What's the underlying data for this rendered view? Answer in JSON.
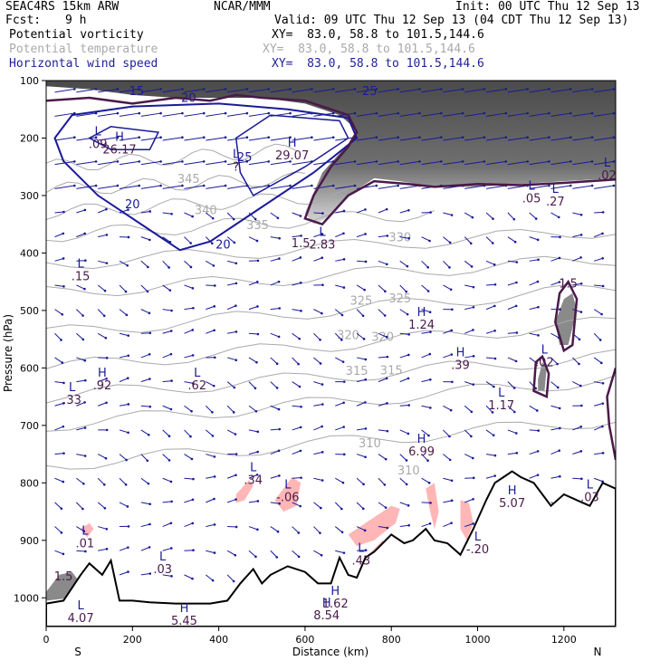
{
  "header": {
    "model": "SEAC4RS 15km ARW",
    "org": "NCAR/MMM",
    "init": "Init: 00 UTC Thu 12 Sep 13",
    "fcst_label": "Fcst:",
    "fcst_value": "9 h",
    "valid": "Valid: 09 UTC Thu 12 Sep 13 (04 CDT Thu 12 Sep 13)",
    "fields": [
      {
        "name": "Potential vorticity",
        "xy": "XY=  83.0, 58.8 to 101.5,144.6",
        "color": "#000000"
      },
      {
        "name": "Potential temperature",
        "xy": "XY=  83.0, 58.8 to 101.5,144.6",
        "color": "#aaaaaa"
      },
      {
        "name": "Horizontal wind speed",
        "xy": "XY=  83.0, 58.8 to 101.5,144.6",
        "color": "#1f1f99"
      }
    ]
  },
  "chart_data": {
    "type": "cross-section",
    "xlabel": "Distance (km)",
    "ylabel": "Pressure (hPa)",
    "xlim": [
      0,
      1320
    ],
    "ylim": [
      1050,
      100
    ],
    "x_ticks": [
      0,
      200,
      400,
      600,
      800,
      1000,
      1200
    ],
    "y_ticks": [
      100,
      200,
      300,
      400,
      500,
      600,
      700,
      800,
      900,
      1000
    ],
    "x_end_labels": {
      "left": "S",
      "right": "N"
    },
    "colors": {
      "pv_contour": "#4a1a4a",
      "theta_contour": "#aaaaaa",
      "wind_contour": "#1a1a99",
      "wind_vector": "#1a1a99",
      "moist_shading": "#ffb6b6",
      "pv_shading": "#666666"
    },
    "terrain": [
      [
        0,
        1010
      ],
      [
        40,
        1005
      ],
      [
        80,
        960
      ],
      [
        100,
        940
      ],
      [
        130,
        960
      ],
      [
        150,
        935
      ],
      [
        170,
        1005
      ],
      [
        200,
        1005
      ],
      [
        240,
        1008
      ],
      [
        300,
        1010
      ],
      [
        380,
        1010
      ],
      [
        420,
        1005
      ],
      [
        450,
        975
      ],
      [
        480,
        950
      ],
      [
        500,
        975
      ],
      [
        520,
        960
      ],
      [
        560,
        945
      ],
      [
        600,
        955
      ],
      [
        630,
        975
      ],
      [
        660,
        975
      ],
      [
        680,
        930
      ],
      [
        700,
        960
      ],
      [
        720,
        965
      ],
      [
        740,
        930
      ],
      [
        760,
        920
      ],
      [
        780,
        905
      ],
      [
        800,
        890
      ],
      [
        830,
        905
      ],
      [
        850,
        900
      ],
      [
        880,
        880
      ],
      [
        900,
        900
      ],
      [
        930,
        905
      ],
      [
        960,
        925
      ],
      [
        990,
        880
      ],
      [
        1020,
        830
      ],
      [
        1040,
        800
      ],
      [
        1060,
        790
      ],
      [
        1080,
        780
      ],
      [
        1100,
        790
      ],
      [
        1130,
        800
      ],
      [
        1150,
        820
      ],
      [
        1170,
        840
      ],
      [
        1200,
        820
      ],
      [
        1230,
        830
      ],
      [
        1260,
        840
      ],
      [
        1290,
        800
      ],
      [
        1320,
        810
      ]
    ],
    "theta_contours": [
      {
        "value": 310,
        "label_x": 840,
        "label_p": 785
      },
      {
        "value": 310,
        "label_x": 750,
        "label_p": 738
      },
      {
        "value": 315,
        "label_x": 720,
        "label_p": 612
      },
      {
        "value": 315,
        "label_x": 800,
        "label_p": 611
      },
      {
        "value": 320,
        "label_x": 700,
        "label_p": 550
      },
      {
        "value": 320,
        "label_x": 780,
        "label_p": 553
      },
      {
        "value": 325,
        "label_x": 730,
        "label_p": 490
      },
      {
        "value": 325,
        "label_x": 820,
        "label_p": 486
      },
      {
        "value": 330,
        "label_x": 820,
        "label_p": 380
      },
      {
        "value": 335,
        "label_x": 490,
        "label_p": 358
      },
      {
        "value": 340,
        "label_x": 370,
        "label_p": 332
      },
      {
        "value": 345,
        "label_x": 330,
        "label_p": 278
      }
    ],
    "wind_contours": [
      {
        "value": 15,
        "label_x": 210,
        "label_p": 125
      },
      {
        "value": 20,
        "label_x": 330,
        "label_p": 137
      },
      {
        "value": 20,
        "label_x": 200,
        "label_p": 322
      },
      {
        "value": 20,
        "label_x": 410,
        "label_p": 392
      },
      {
        "value": 25,
        "label_x": 460,
        "label_p": 240
      },
      {
        "value": 25,
        "label_x": 750,
        "label_p": 125
      }
    ],
    "pv_labels": [
      {
        "value": 1.5,
        "label_x": 590,
        "label_p": 390
      },
      {
        "value": 1.5,
        "label_x": 1210,
        "label_p": 460
      },
      {
        "value": 1.5,
        "label_x": 40,
        "label_p": 970
      }
    ],
    "max_min_markers": [
      {
        "mark": "L",
        "x": 120,
        "p": 195,
        "value": ".09"
      },
      {
        "mark": "H",
        "x": 170,
        "p": 205,
        "value": "26.17"
      },
      {
        "mark": "H",
        "x": 570,
        "p": 215,
        "value": "29.07"
      },
      {
        "mark": "L",
        "x": 440,
        "p": 235,
        "value": "?"
      },
      {
        "mark": "L",
        "x": 1125,
        "p": 290,
        "value": ".05"
      },
      {
        "mark": "L",
        "x": 1180,
        "p": 295,
        "value": ".27"
      },
      {
        "mark": "L",
        "x": 1300,
        "p": 250,
        "value": ".02"
      },
      {
        "mark": "L",
        "x": 640,
        "p": 370,
        "value": "2.83"
      },
      {
        "mark": "L",
        "x": 80,
        "p": 425,
        "value": ".15"
      },
      {
        "mark": "H",
        "x": 870,
        "p": 510,
        "value": "1.24"
      },
      {
        "mark": "H",
        "x": 960,
        "p": 580,
        "value": ".39"
      },
      {
        "mark": "L",
        "x": 1155,
        "p": 575,
        "value": ".02"
      },
      {
        "mark": "H",
        "x": 130,
        "p": 615,
        "value": ".92"
      },
      {
        "mark": "L",
        "x": 350,
        "p": 615,
        "value": ".62"
      },
      {
        "mark": "L",
        "x": 60,
        "p": 640,
        "value": ".33"
      },
      {
        "mark": "L",
        "x": 1055,
        "p": 650,
        "value": "1.17"
      },
      {
        "mark": "H",
        "x": 870,
        "p": 730,
        "value": "6.99"
      },
      {
        "mark": "L",
        "x": 480,
        "p": 780,
        "value": ".34"
      },
      {
        "mark": "L",
        "x": 560,
        "p": 810,
        "value": "-.06"
      },
      {
        "mark": "H",
        "x": 1080,
        "p": 820,
        "value": "5.07"
      },
      {
        "mark": "L",
        "x": 1260,
        "p": 810,
        "value": ".03"
      },
      {
        "mark": "L",
        "x": 90,
        "p": 890,
        "value": ".01"
      },
      {
        "mark": "L",
        "x": 730,
        "p": 920,
        "value": ".43"
      },
      {
        "mark": "L",
        "x": 1000,
        "p": 900,
        "value": "-.20"
      },
      {
        "mark": "L",
        "x": 270,
        "p": 935,
        "value": ".03"
      },
      {
        "mark": "H",
        "x": 670,
        "p": 995,
        "value": "1.62"
      },
      {
        "mark": "H",
        "x": 650,
        "p": 1015,
        "value": "8.54"
      },
      {
        "mark": "H",
        "x": 320,
        "p": 1025,
        "value": "5.45"
      },
      {
        "mark": "L",
        "x": 80,
        "p": 1020,
        "value": "4.07"
      }
    ]
  }
}
